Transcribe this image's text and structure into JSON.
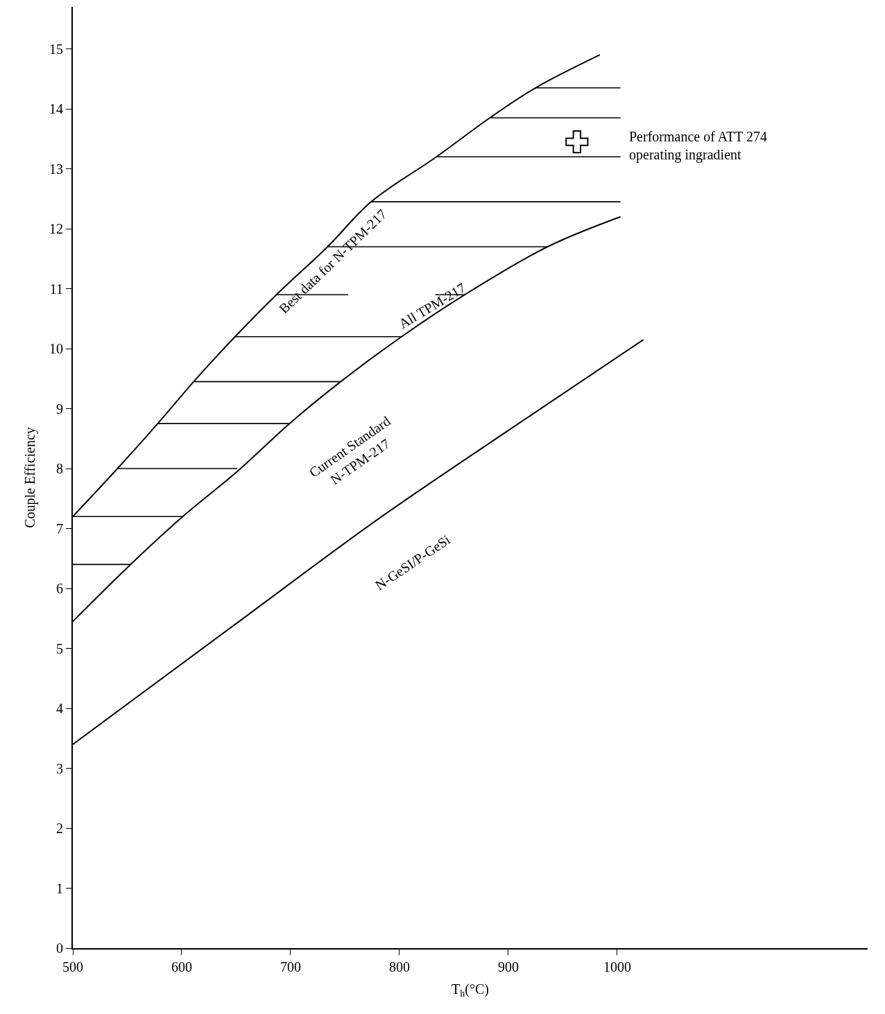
{
  "chart_data": {
    "type": "line",
    "xlabel": "T$_{h}$(°C)",
    "ylabel": "Couple Efficiency",
    "xlim": [
      500,
      1230
    ],
    "ylim": [
      0,
      15.7
    ],
    "xticks": [
      500,
      600,
      700,
      800,
      900,
      1000
    ],
    "yticks": [
      0,
      1,
      2,
      3,
      4,
      5,
      6,
      7,
      8,
      9,
      10,
      11,
      12,
      13,
      14,
      15
    ],
    "line_style": "solid",
    "series": [
      {
        "color": "#000000",
        "x": [
          500,
          541,
          578,
          611,
          649,
          687,
          734,
          774,
          834,
          883,
          925,
          984
        ],
        "values": [
          7.2,
          8.0,
          8.75,
          9.45,
          10.2,
          10.9,
          11.7,
          12.45,
          13.2,
          13.85,
          14.35,
          14.9
        ]
      },
      {
        "color": "#000000",
        "x": [
          500,
          553,
          601,
          651,
          699,
          746,
          802,
          860,
          936,
          1003
        ],
        "values": [
          5.45,
          6.4,
          7.2,
          7.95,
          8.75,
          9.45,
          10.2,
          10.9,
          11.7,
          12.2
        ]
      },
      {
        "color": "#000000",
        "x": [
          500,
          649,
          776,
          897,
          1024
        ],
        "values": [
          3.4,
          5.4,
          7.1,
          8.6,
          10.15
        ]
      },
      {
        "color": "#000000",
        "x": [
          500,
          553,
          null,
          500,
          601,
          null,
          541,
          651,
          null,
          578,
          699,
          null,
          611,
          746,
          null,
          649,
          802,
          null,
          687,
          753,
          null,
          833,
          860,
          null,
          734,
          936,
          null,
          774,
          1003,
          null,
          834,
          1003,
          null,
          883,
          1003,
          null,
          925,
          1003
        ],
        "values": [
          6.4,
          6.4,
          null,
          7.2,
          7.2,
          null,
          8.0,
          8.0,
          null,
          8.75,
          8.75,
          null,
          9.45,
          9.45,
          null,
          10.2,
          10.2,
          null,
          10.9,
          10.9,
          null,
          10.9,
          10.9,
          null,
          11.7,
          11.7,
          null,
          12.45,
          12.45,
          null,
          13.2,
          13.2,
          null,
          13.85,
          13.85,
          null,
          14.35,
          14.35
        ]
      },
      {
        "type": "scatter",
        "marker": "cross",
        "color": "#000000",
        "x": [
          963
        ],
        "values": [
          13.45
        ]
      }
    ],
    "annotations": [
      "Best data for N-TPM-217",
      "All TPM-217",
      "Current Standard\nN-TPM-217",
      "N-GeSI/P-GeSi",
      "Performance of ATT 274\noperating ingradient"
    ]
  }
}
